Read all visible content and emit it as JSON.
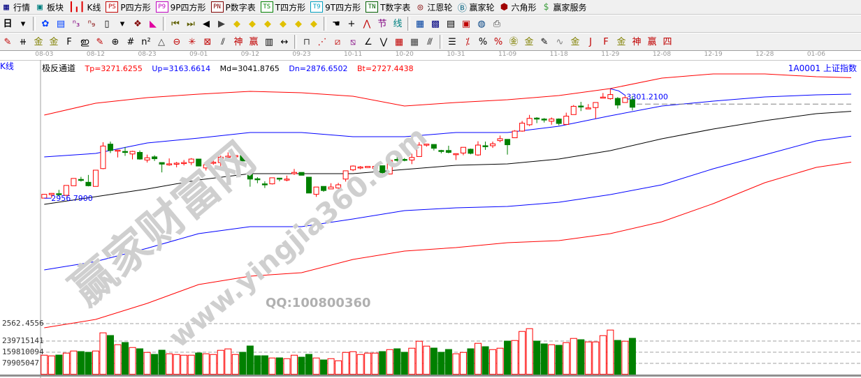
{
  "menu": [
    {
      "label": "行情",
      "icon": "quotes-table-icon",
      "glyph": "▦",
      "color": "#000080",
      "box": ""
    },
    {
      "label": "板块",
      "icon": "sector-blocks-icon",
      "glyph": "▣",
      "color": "#008080",
      "box": ""
    },
    {
      "label": "K线",
      "icon": "candlestick-icon",
      "glyph": "┃╻┃",
      "color": "#e00000",
      "box": ""
    },
    {
      "label": "P四方形",
      "icon": "p-square-icon",
      "glyph": "",
      "color": "#c00000",
      "box": "PS"
    },
    {
      "label": "9P四方形",
      "icon": "9p-square-icon",
      "glyph": "",
      "color": "#c000c0",
      "box": "P9"
    },
    {
      "label": "P数字表",
      "icon": "p-number-table-icon",
      "glyph": "",
      "color": "#800000",
      "box": "PN"
    },
    {
      "label": "T四方形",
      "icon": "t-square-icon",
      "glyph": "",
      "color": "#008000",
      "box": "TS"
    },
    {
      "label": "9T四方形",
      "icon": "9t-square-icon",
      "glyph": "",
      "color": "#00a0c0",
      "box": "T9"
    },
    {
      "label": "T数字表",
      "icon": "t-number-table-icon",
      "glyph": "",
      "color": "#006000",
      "box": "TN"
    },
    {
      "label": "江恩轮",
      "icon": "gann-wheel-icon",
      "glyph": "◎",
      "color": "#800000",
      "box": ""
    },
    {
      "label": "赢家轮",
      "icon": "winner-wheel-icon",
      "glyph": "Ⓑ",
      "color": "#006080",
      "box": ""
    },
    {
      "label": "六角形",
      "icon": "hexagon-icon",
      "glyph": "⬢",
      "color": "#a00000",
      "box": ""
    },
    {
      "label": "赢家服务",
      "icon": "dollar-service-icon",
      "glyph": "$",
      "color": "#40a040",
      "box": ""
    }
  ],
  "toolbar2": {
    "period_label": "日",
    "icons": [
      {
        "name": "period-dropdown-icon",
        "glyph": "▾",
        "color": "#000"
      },
      {
        "name": "sep"
      },
      {
        "name": "pattern-icon",
        "glyph": "✿",
        "color": "#0040ff"
      },
      {
        "name": "notes-icon",
        "glyph": "▤",
        "color": "#0040ff"
      },
      {
        "name": "wave3-icon",
        "glyph": "ⁿ₃",
        "color": "#800080"
      },
      {
        "name": "wave9-icon",
        "glyph": "ⁿ₉",
        "color": "#800000"
      },
      {
        "name": "candle-type-icon",
        "glyph": "▯",
        "color": "#000"
      },
      {
        "name": "dropdown-icon",
        "glyph": "▾",
        "color": "#000"
      },
      {
        "name": "map-icon",
        "glyph": "❖",
        "color": "#800000"
      },
      {
        "name": "flag-chart-icon",
        "glyph": "◣",
        "color": "#e000a0"
      },
      {
        "name": "sep"
      },
      {
        "name": "first-icon",
        "glyph": "⏮",
        "color": "#606000"
      },
      {
        "name": "last-icon",
        "glyph": "⏭",
        "color": "#606000"
      },
      {
        "name": "prev-icon",
        "glyph": "◀",
        "color": "#000"
      },
      {
        "name": "next-icon",
        "glyph": "▶",
        "color": "#404040"
      },
      {
        "name": "move-left-icon",
        "glyph": "◆",
        "color": "#e0c000"
      },
      {
        "name": "move-right-icon",
        "glyph": "◆",
        "color": "#e0c000"
      },
      {
        "name": "zoom-h-icon",
        "glyph": "◆",
        "color": "#e0c000"
      },
      {
        "name": "shrink-icon",
        "glyph": "◆",
        "color": "#e0c000"
      },
      {
        "name": "expand-icon",
        "glyph": "◆",
        "color": "#e0c000"
      },
      {
        "name": "expand-all-icon",
        "glyph": "◆",
        "color": "#e0c000"
      },
      {
        "name": "sep"
      },
      {
        "name": "hand-icon",
        "glyph": "☚",
        "color": "#000"
      },
      {
        "name": "crosshair-icon",
        "glyph": "+",
        "color": "#000"
      },
      {
        "name": "line-tool-icon",
        "glyph": "⋀",
        "color": "#c00000"
      },
      {
        "name": "pattern2-icon",
        "glyph": "节",
        "color": "#800080"
      },
      {
        "name": "pattern3-icon",
        "glyph": "线",
        "color": "#008080"
      },
      {
        "name": "sep"
      },
      {
        "name": "calendar-icon",
        "glyph": "▦",
        "color": "#0040a0"
      },
      {
        "name": "calculator-icon",
        "glyph": "▩",
        "color": "#000080"
      },
      {
        "name": "document-icon",
        "glyph": "▤",
        "color": "#000"
      },
      {
        "name": "save-icon",
        "glyph": "▣",
        "color": "#c00000"
      },
      {
        "name": "network-icon",
        "glyph": "◍",
        "color": "#004080"
      },
      {
        "name": "print-icon",
        "glyph": "⎙",
        "color": "#404040"
      }
    ]
  },
  "toolbar3": {
    "icons": [
      {
        "name": "pen-icon",
        "glyph": "✎",
        "color": "#c00000"
      },
      {
        "name": "parallel-lines-icon",
        "glyph": "⧺",
        "color": "#000"
      },
      {
        "name": "gold-icon",
        "glyph": "金",
        "color": "#808000"
      },
      {
        "name": "gold2-icon",
        "glyph": "金",
        "color": "#808000"
      },
      {
        "name": "f-line-icon",
        "glyph": "F",
        "color": "#000"
      },
      {
        "name": "spiral-icon",
        "glyph": "ഇ",
        "color": "#000"
      },
      {
        "name": "pen2-icon",
        "glyph": "✎",
        "color": "#c00000"
      },
      {
        "name": "circle-ruler-icon",
        "glyph": "⊕",
        "color": "#000"
      },
      {
        "name": "grid-lines-icon",
        "glyph": "#",
        "color": "#000"
      },
      {
        "name": "n2-icon",
        "glyph": "n²",
        "color": "#000"
      },
      {
        "name": "triangle-icon",
        "glyph": "△",
        "color": "#404040"
      },
      {
        "name": "gann-circle-icon",
        "glyph": "⊖",
        "color": "#c00000"
      },
      {
        "name": "star-icon",
        "glyph": "✳",
        "color": "#c00000"
      },
      {
        "name": "box-star-icon",
        "glyph": "⊠",
        "color": "#c00000"
      },
      {
        "name": "slash-icon",
        "glyph": "⫽",
        "color": "#000"
      },
      {
        "name": "god-icon",
        "glyph": "神",
        "color": "#c00000"
      },
      {
        "name": "win-icon",
        "glyph": "赢",
        "color": "#c00000"
      },
      {
        "name": "ruler-icon",
        "glyph": "▥",
        "color": "#000"
      },
      {
        "name": "width-icon",
        "glyph": "↔",
        "color": "#000"
      },
      {
        "name": "sep"
      },
      {
        "name": "box-tool-icon",
        "glyph": "⊓",
        "color": "#404040"
      },
      {
        "name": "fan-icon",
        "glyph": "⋰",
        "color": "#c00000"
      },
      {
        "name": "box-fan-icon",
        "glyph": "⧄",
        "color": "#c00000"
      },
      {
        "name": "box-fan2-icon",
        "glyph": "⧅",
        "color": "#800080"
      },
      {
        "name": "angle-icon",
        "glyph": "∠",
        "color": "#000"
      },
      {
        "name": "v-icon",
        "glyph": "⋁",
        "color": "#000"
      },
      {
        "name": "grid-icon",
        "glyph": "▦",
        "color": "#c00000"
      },
      {
        "name": "grid2-icon",
        "glyph": "▦",
        "color": "#404040"
      },
      {
        "name": "hatch-icon",
        "glyph": "⫻",
        "color": "#000"
      },
      {
        "name": "sep"
      },
      {
        "name": "level-icon",
        "glyph": "☰",
        "color": "#000"
      },
      {
        "name": "percent-line-icon",
        "glyph": "⁒",
        "color": "#c00000"
      },
      {
        "name": "percent-icon",
        "glyph": "%",
        "color": "#000"
      },
      {
        "name": "percent-level-icon",
        "glyph": "%",
        "color": "#c00000"
      },
      {
        "name": "gold-circle-icon",
        "glyph": "㊎",
        "color": "#808000"
      },
      {
        "name": "gold-level-icon",
        "glyph": "金",
        "color": "#808000"
      },
      {
        "name": "pen-level-icon",
        "glyph": "✎",
        "color": "#000"
      },
      {
        "name": "wave-level-icon",
        "glyph": "∿",
        "color": "#808080"
      },
      {
        "name": "gold-band-icon",
        "glyph": "金",
        "color": "#808000"
      },
      {
        "name": "j-angle-icon",
        "glyph": "J",
        "color": "#c00000"
      },
      {
        "name": "f-angle-icon",
        "glyph": "F",
        "color": "#c00000"
      },
      {
        "name": "gold-angle-icon",
        "glyph": "金",
        "color": "#808000"
      },
      {
        "name": "god-angle-icon",
        "glyph": "神",
        "color": "#c00000"
      },
      {
        "name": "win-angle-icon",
        "glyph": "赢",
        "color": "#c00000"
      },
      {
        "name": "four-angle-icon",
        "glyph": "四",
        "color": "#c00000"
      }
    ]
  },
  "chart": {
    "panel_label": "K线",
    "indicator_name": "极反通道",
    "legend": [
      {
        "text": "Tp=3271.6255",
        "color": "#ff0000"
      },
      {
        "text": "Up=3163.6614",
        "color": "#0000ff"
      },
      {
        "text": "Md=3041.8765",
        "color": "#000000"
      },
      {
        "text": "Dn=2876.6502",
        "color": "#0000ff"
      },
      {
        "text": "Bt=2727.4438",
        "color": "#ff0000"
      }
    ],
    "security": "1A0001  上证指数",
    "high_label": "3301.2100",
    "low_label": "2956.7900",
    "price_bottom_label": "2562.4556",
    "volume_labels": [
      "239715141",
      "159810094",
      "79905047"
    ],
    "watermark": {
      "cn": "赢家财富网",
      "url": "www.yingjia360.com",
      "qq": "QQ:100800360"
    }
  },
  "chart_data": {
    "type": "candlestick",
    "x_ticks": [
      "08-03",
      "08-12",
      "08-23",
      "09-01",
      "09-12",
      "09-23",
      "10-11",
      "10-20",
      "10-31",
      "11-09",
      "11-18",
      "11-29",
      "12-08",
      "12-19",
      "12-28",
      "01-06"
    ],
    "ohlc": [
      [
        2957,
        2969,
        2970,
        2956.79
      ],
      [
        2968,
        2972,
        2973,
        2958
      ],
      [
        2971,
        2970,
        2983,
        2962
      ],
      [
        2966,
        2997,
        2997,
        2963
      ],
      [
        2996,
        3019,
        3019,
        2996
      ],
      [
        3016,
        3015,
        3024,
        3009
      ],
      [
        3007,
        2996,
        3030,
        2994
      ],
      [
        2994,
        3045,
        3046,
        2994
      ],
      [
        3050,
        3121,
        3133,
        3048
      ],
      [
        3127,
        3107,
        3135,
        3099
      ],
      [
        3106,
        3108,
        3109,
        3085
      ],
      [
        3104,
        3102,
        3118,
        3090
      ],
      [
        3096,
        3104,
        3106,
        3079
      ],
      [
        3101,
        3080,
        3107,
        3078
      ],
      [
        3077,
        3084,
        3094,
        3069
      ],
      [
        3087,
        3081,
        3092,
        3074
      ],
      [
        3069,
        3064,
        3069,
        3038
      ],
      [
        3064,
        3065,
        3082,
        3059
      ],
      [
        3065,
        3067,
        3071,
        3054
      ],
      [
        3068,
        3069,
        3077,
        3060
      ],
      [
        3069,
        3080,
        3083,
        3061
      ],
      [
        3080,
        3058,
        3080,
        3057
      ],
      [
        3052,
        3062,
        3069,
        3044
      ],
      [
        3067,
        3070,
        3080,
        3062
      ],
      [
        3069,
        3086,
        3091,
        3048
      ],
      [
        3088,
        3089,
        3101,
        3082
      ],
      [
        3087,
        3091,
        3092,
        3084
      ],
      [
        3091,
        3074,
        3099,
        3074
      ],
      [
        3032,
        3017,
        3035,
        2993
      ],
      [
        3018,
        3017,
        3023,
        3004
      ],
      [
        3002,
        3000,
        3010,
        2989
      ],
      [
        3002,
        3021,
        3021,
        3000
      ],
      [
        3020,
        3017,
        3021,
        3010
      ],
      [
        3015,
        3017,
        3028,
        3010
      ],
      [
        3034,
        3038,
        3049,
        3030
      ],
      [
        3038,
        3029,
        3038,
        3029
      ],
      [
        3023,
        2973,
        3023,
        2973
      ],
      [
        2969,
        2992,
        2992,
        2961
      ],
      [
        2994,
        2981,
        2994,
        2977
      ],
      [
        2986,
        2992,
        3004,
        2986
      ],
      [
        2989,
        2999,
        3005,
        2987
      ],
      [
        3017,
        3043,
        3043,
        3009
      ],
      [
        3046,
        3058,
        3060,
        3042
      ],
      [
        3053,
        3055,
        3058,
        3048
      ],
      [
        3053,
        3057,
        3058,
        3052
      ],
      [
        3051,
        3057,
        3057,
        3039
      ],
      [
        3059,
        3037,
        3059,
        3027
      ],
      [
        3033,
        3076,
        3080,
        3033
      ],
      [
        3079,
        3078,
        3088,
        3072
      ],
      [
        3079,
        3078,
        3083,
        3073
      ],
      [
        3077,
        3085,
        3097,
        3064
      ],
      [
        3088,
        3124,
        3133,
        3088
      ],
      [
        3125,
        3127,
        3128,
        3119
      ],
      [
        3126,
        3114,
        3126,
        3107
      ],
      [
        3107,
        3106,
        3109,
        3098
      ],
      [
        3107,
        3101,
        3122,
        3098
      ],
      [
        3095,
        3097,
        3098,
        3077
      ],
      [
        3099,
        3117,
        3117,
        3092
      ],
      [
        3111,
        3098,
        3113,
        3095
      ],
      [
        3093,
        3124,
        3136,
        3090
      ],
      [
        3122,
        3121,
        3135,
        3109
      ],
      [
        3122,
        3128,
        3135,
        3115
      ],
      [
        3138,
        3144,
        3154,
        3133
      ],
      [
        3142,
        3125,
        3142,
        3094
      ],
      [
        3147,
        3168,
        3171,
        3147
      ],
      [
        3168,
        3193,
        3200,
        3166
      ],
      [
        3188,
        3208,
        3219,
        3184
      ],
      [
        3209,
        3208,
        3212,
        3193
      ],
      [
        3206,
        3205,
        3209,
        3195
      ],
      [
        3199,
        3206,
        3211,
        3188
      ],
      [
        3206,
        3192,
        3208,
        3186
      ],
      [
        3189,
        3215,
        3226,
        3189
      ],
      [
        3220,
        3246,
        3250,
        3220
      ],
      [
        3247,
        3245,
        3260,
        3231
      ],
      [
        3239,
        3241,
        3253,
        3237
      ],
      [
        3242,
        3258,
        3258,
        3207
      ],
      [
        3272,
        3275,
        3288,
        3272
      ],
      [
        3270,
        3283,
        3301.21,
        3267
      ],
      [
        3271,
        3250,
        3275,
        3239
      ],
      [
        3258,
        3273,
        3278,
        3258
      ],
      [
        3267,
        3243,
        3278,
        3233
      ]
    ],
    "volume": [
      137,
      132,
      138,
      152,
      167,
      163,
      158,
      167,
      297,
      278,
      212,
      228,
      192,
      183,
      157,
      143,
      173,
      147,
      142,
      137,
      137,
      153,
      147,
      142,
      172,
      182,
      142,
      158,
      203,
      133,
      133,
      117,
      118,
      112,
      137,
      123,
      143,
      117,
      103,
      112,
      97,
      157,
      162,
      142,
      152,
      152,
      163,
      177,
      183,
      158,
      187,
      237,
      202,
      188,
      158,
      178,
      147,
      157,
      183,
      222,
      198,
      177,
      187,
      238,
      242,
      307,
      327,
      238,
      218,
      212,
      208,
      227,
      257,
      248,
      232,
      232,
      277,
      317,
      243,
      237,
      258
    ],
    "volume_unit": "million",
    "bands_at_ticks": {
      "top_red": [
        3218.4,
        3255.7,
        3273.3,
        3284.3,
        3293.1,
        3288.7,
        3277.7,
        3247.0,
        3257.9,
        3266.7,
        3279.9,
        3301.8,
        3334.8,
        3347.9,
        3347.9,
        3339.1
      ],
      "upper_blue": [
        3086.7,
        3097.7,
        3130.6,
        3146.0,
        3163.6,
        3163.6,
        3150.4,
        3150.4,
        3163.6,
        3163.6,
        3183.3,
        3216.2,
        3247.0,
        3262.3,
        3275.5,
        3282.1
      ],
      "middle_black": [
        2937.5,
        2961.6,
        2985.8,
        3014.3,
        3034.0,
        3034.0,
        3034.0,
        3047.2,
        3060.4,
        3064.8,
        3080.1,
        3106.5,
        3143.8,
        3174.5,
        3200.9,
        3222.8
      ],
      "lower_blue": [
        2731.1,
        2757.5,
        2799.2,
        2845.3,
        2867.2,
        2867.2,
        2891.4,
        2917.7,
        2926.5,
        2930.9,
        2944.0,
        2968.2,
        2998.9,
        3049.4,
        3093.3,
        3137.2
      ],
      "bottom_red": [
        2548.9,
        2575.3,
        2625.8,
        2685.0,
        2711.4,
        2722.4,
        2764.1,
        2790.4,
        2801.4,
        2816.7,
        2823.3,
        2845.3,
        2882.6,
        2939.7,
        3005.5,
        3053.8
      ]
    },
    "band_colors": {
      "top_red": "#ff0000",
      "upper_blue": "#0000ff",
      "middle_black": "#000000",
      "lower_blue": "#0000ff",
      "bottom_red": "#ff0000"
    },
    "up_color": "#ff0000",
    "down_color": "#008000",
    "volume_ylim": [
      0,
      320
    ],
    "grid": "dashed horizontal in volume panel"
  }
}
